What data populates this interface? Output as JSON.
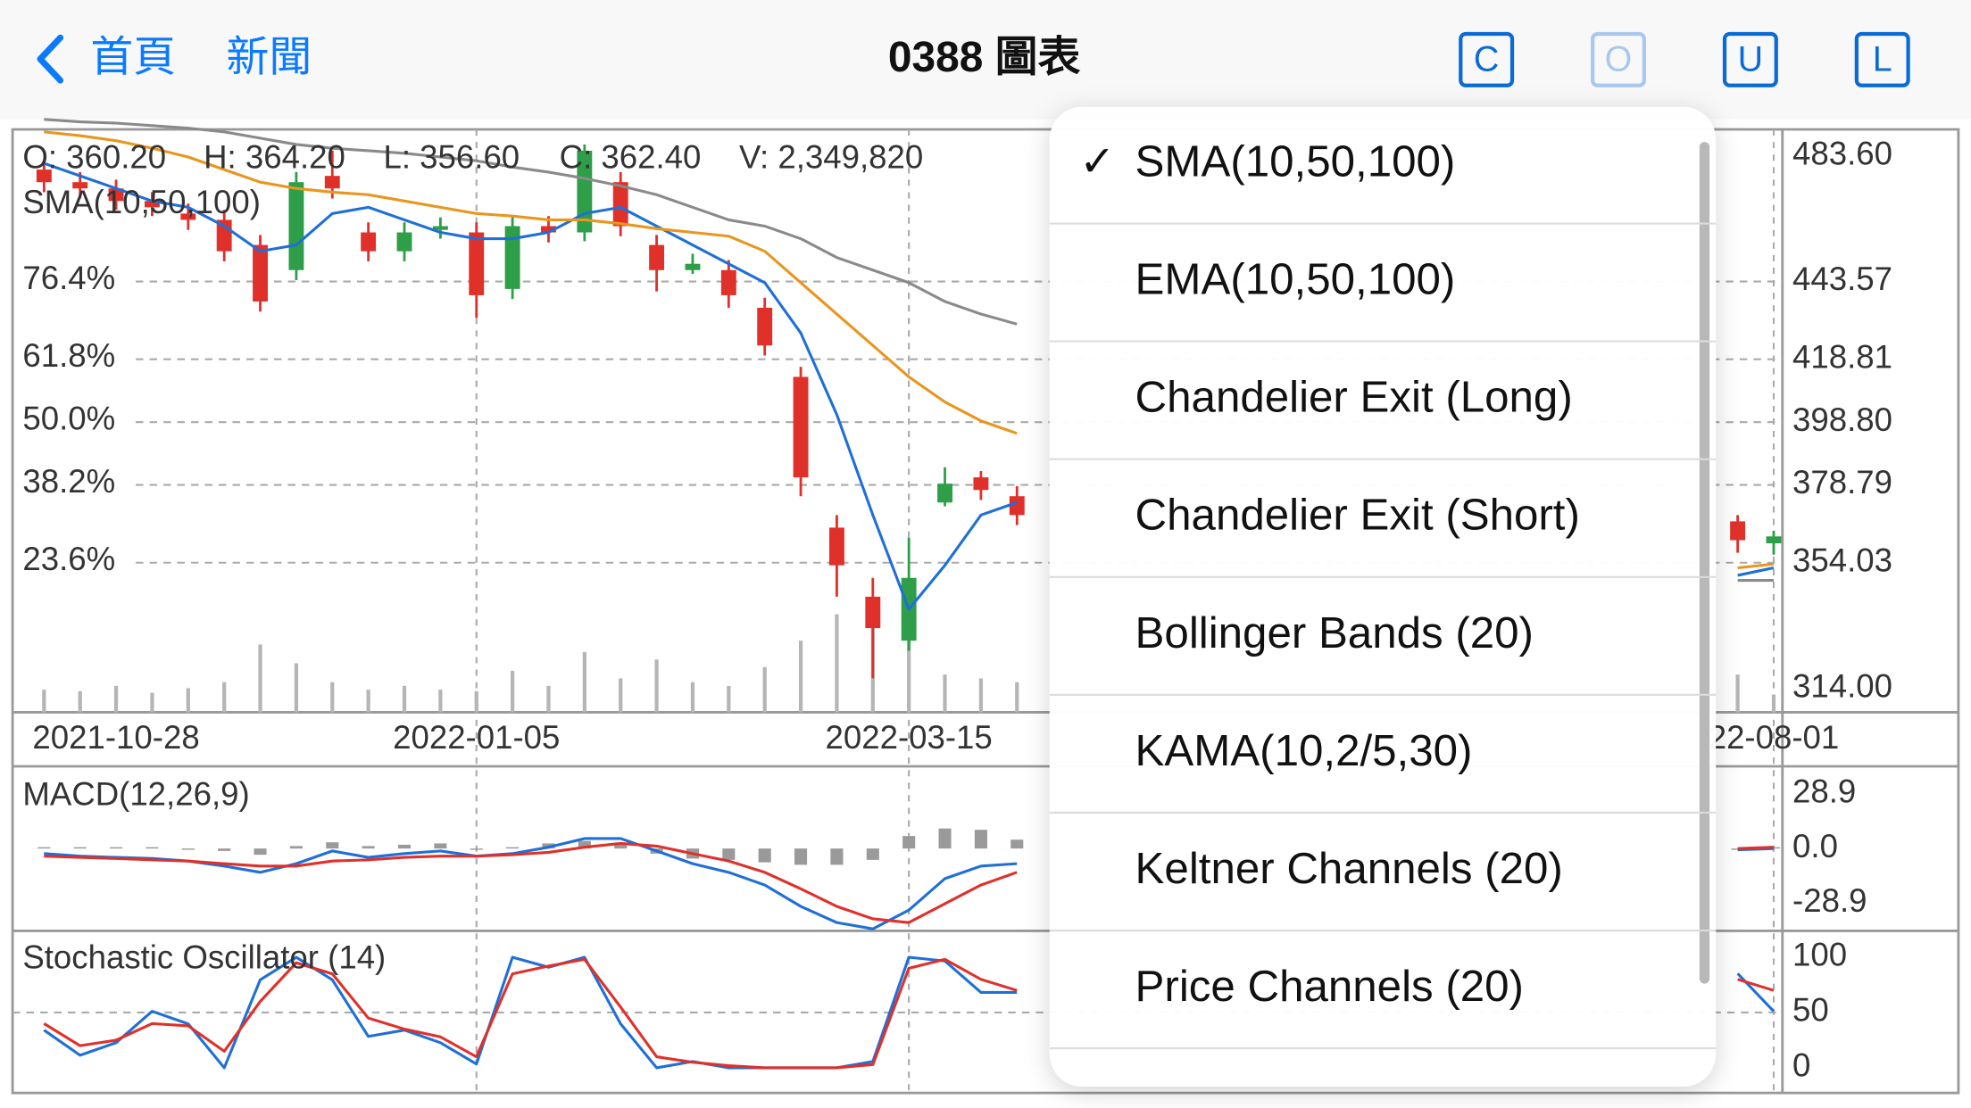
{
  "nav": {
    "back": "首頁",
    "news": "新聞",
    "title": "0388 圖表",
    "buttons": [
      "C",
      "O",
      "U",
      "L"
    ],
    "disabled_button": 1
  },
  "chart_data": [
    {
      "type": "candlestick",
      "info": [
        "O: 360.20",
        "H: 364.20",
        "L: 356.60",
        "C: 362.40",
        "V: 2,349,820"
      ],
      "indicator_label": "SMA(10,50,100)",
      "categories": [
        null,
        null,
        "2021-10-28",
        null,
        null,
        null,
        null,
        null,
        null,
        null,
        null,
        null,
        "2022-01-05",
        null,
        null,
        null,
        null,
        null,
        null,
        null,
        null,
        null,
        null,
        null,
        "2022-03-15",
        null,
        null,
        null,
        null,
        null,
        null,
        null,
        null,
        null,
        null,
        null,
        null,
        null,
        null,
        null,
        null,
        null,
        null,
        null,
        null,
        null,
        null,
        null,
        "22-08-01"
      ],
      "open": [
        479.2,
        475.2,
        473.2,
        469.2,
        465.2,
        463.2,
        455.2,
        447.2,
        477.2,
        459.2,
        453.2,
        460.0,
        459.2,
        441.2,
        461.2,
        459.2,
        475.2,
        455.2,
        447.2,
        447.2,
        435.2,
        413.2,
        365.2,
        343.2,
        329.2,
        373.2,
        381.2,
        375.2,
        null,
        null,
        null,
        null,
        null,
        null,
        null,
        null,
        null,
        null,
        null,
        null,
        null,
        null,
        null,
        null,
        null,
        null,
        null,
        367.2,
        360.2
      ],
      "high": [
        482.4,
        478.4,
        476.0,
        472.0,
        468.4,
        466.4,
        458.4,
        478.4,
        485.2,
        462.4,
        462.4,
        464.0,
        462.4,
        464.4,
        464.4,
        487.2,
        478.4,
        458.4,
        452.4,
        450.4,
        438.4,
        416.4,
        369.2,
        349.2,
        362.0,
        384.4,
        383.2,
        378.4,
        null,
        null,
        null,
        null,
        null,
        null,
        null,
        null,
        null,
        null,
        null,
        null,
        null,
        null,
        null,
        null,
        null,
        null,
        null,
        369.2,
        364.2
      ],
      "low": [
        472.0,
        470.0,
        466.4,
        464.4,
        460.0,
        450.0,
        434.0,
        444.0,
        470.0,
        450.0,
        450.0,
        457.2,
        432.0,
        438.0,
        456.0,
        456.4,
        458.0,
        440.4,
        446.0,
        435.2,
        420.0,
        375.2,
        343.2,
        317.2,
        326.0,
        372.0,
        374.0,
        366.0,
        null,
        null,
        null,
        null,
        null,
        null,
        null,
        null,
        null,
        null,
        null,
        null,
        null,
        null,
        null,
        null,
        null,
        null,
        null,
        357.2,
        356.6
      ],
      "close": [
        475.2,
        473.2,
        469.2,
        467.2,
        463.2,
        453.2,
        437.2,
        475.2,
        473.2,
        453.2,
        459.2,
        461.2,
        439.2,
        461.2,
        459.2,
        485.2,
        461.2,
        447.2,
        449.2,
        439.2,
        423.2,
        381.2,
        353.2,
        333.2,
        349.2,
        379.2,
        377.2,
        369.2,
        null,
        null,
        null,
        null,
        null,
        null,
        null,
        null,
        null,
        null,
        null,
        null,
        null,
        null,
        null,
        null,
        null,
        null,
        null,
        361.2,
        362.4
      ],
      "up_color": "#2e9e48",
      "down_color": "#e0302a",
      "series": [
        {
          "color": "#1f6fd8",
          "values": [
            481.2,
            477.2,
            473.2,
            469.2,
            467.2,
            461.2,
            453.2,
            455.2,
            465.2,
            467.2,
            463.2,
            459.2,
            457.2,
            457.2,
            459.2,
            465.2,
            467.2,
            461.2,
            455.2,
            449.2,
            443.2,
            427.2,
            401.2,
            369.2,
            339.2,
            353.2,
            369.2,
            373.2,
            null,
            null,
            null,
            null,
            null,
            null,
            null,
            null,
            null,
            null,
            null,
            null,
            null,
            null,
            null,
            null,
            null,
            null,
            null,
            350.0,
            352.4
          ]
        },
        {
          "color": "#e8961e",
          "values": [
            491.2,
            490.0,
            488.4,
            486.0,
            483.2,
            479.2,
            475.2,
            473.2,
            472.0,
            471.2,
            469.2,
            467.2,
            465.2,
            464.4,
            463.2,
            463.2,
            462.0,
            460.4,
            459.2,
            458.0,
            453.2,
            443.2,
            433.2,
            423.2,
            413.2,
            405.2,
            399.2,
            395.2,
            null,
            null,
            null,
            null,
            null,
            null,
            null,
            null,
            null,
            null,
            null,
            null,
            null,
            null,
            null,
            null,
            null,
            null,
            null,
            352.4,
            353.6
          ]
        },
        {
          "color": "#8a8a8a",
          "values": [
            495.2,
            494.4,
            494.0,
            493.2,
            492.4,
            491.2,
            489.2,
            487.2,
            486.0,
            485.2,
            484.4,
            483.2,
            482.0,
            480.0,
            478.4,
            476.4,
            474.0,
            471.2,
            467.2,
            463.2,
            461.2,
            457.2,
            451.2,
            447.2,
            443.2,
            437.2,
            433.2,
            430.0,
            null,
            null,
            null,
            null,
            null,
            null,
            null,
            null,
            null,
            null,
            null,
            null,
            null,
            null,
            null,
            null,
            null,
            null,
            null,
            348.4,
            348.4
          ]
        }
      ],
      "volume": {
        "color": "#b5b5b5",
        "vlim": [
          0,
          20000000
        ],
        "values": [
          3000000,
          2800000,
          3500000,
          2600000,
          3200000,
          4000000,
          9000000,
          6500000,
          4000000,
          3000000,
          3500000,
          3000000,
          2800000,
          5500000,
          3500000,
          8000000,
          4500000,
          7000000,
          4000000,
          3500000,
          6000000,
          9500000,
          13000000,
          14000000,
          11500000,
          5000000,
          4500000,
          4000000,
          null,
          null,
          null,
          null,
          null,
          null,
          null,
          null,
          null,
          null,
          null,
          null,
          null,
          null,
          null,
          null,
          null,
          null,
          null,
          5000000,
          2349820
        ]
      },
      "ylim": [
        306.4,
        492
      ],
      "yticks": [
        {
          "value": 483.6,
          "label": "483.60"
        },
        {
          "value": 443.57,
          "label": "443.57",
          "fib": "76.4%"
        },
        {
          "value": 418.81,
          "label": "418.81",
          "fib": "61.8%"
        },
        {
          "value": 398.8,
          "label": "398.80",
          "fib": "50.0%"
        },
        {
          "value": 378.79,
          "label": "378.79",
          "fib": "38.2%"
        },
        {
          "value": 354.03,
          "label": "354.03",
          "fib": "23.6%"
        },
        {
          "value": 314,
          "label": "314.00"
        }
      ]
    },
    {
      "type": "macd",
      "title": "MACD(12,26,9)",
      "series": [
        {
          "color": "#1f6fd8",
          "values": [
            -2.7,
            -4.0,
            -4.7,
            -5.3,
            -6.6,
            -9.3,
            -12.6,
            -8.0,
            -1.3,
            -4.7,
            -2.7,
            -1.3,
            -4.0,
            -2.7,
            0.7,
            5.3,
            5.3,
            -1.3,
            -8.0,
            -12.6,
            -19.3,
            -30.6,
            -39.2,
            -42.5,
            -32.6,
            -15.9,
            -9.3,
            -8.0,
            null,
            null,
            null,
            null,
            null,
            null,
            null,
            null,
            null,
            null,
            null,
            null,
            null,
            null,
            null,
            null,
            null,
            null,
            null,
            -0.7,
            0.0
          ]
        },
        {
          "color": "#e0302a",
          "values": [
            -4.0,
            -4.7,
            -5.3,
            -6.0,
            -6.6,
            -8.0,
            -9.3,
            -9.3,
            -6.6,
            -6.0,
            -4.7,
            -4.0,
            -4.0,
            -3.3,
            -2.0,
            0.7,
            2.7,
            1.3,
            -2.7,
            -6.6,
            -12.6,
            -21.3,
            -30.6,
            -37.2,
            -39.2,
            -29.2,
            -19.3,
            -12.6,
            null,
            null,
            null,
            null,
            null,
            null,
            null,
            null,
            null,
            null,
            null,
            null,
            null,
            null,
            null,
            null,
            null,
            null,
            null,
            0.0,
            0.7
          ]
        }
      ],
      "histogram": {
        "color": "#9a9a9a",
        "values": [
          0.7,
          0.7,
          0.7,
          0.7,
          0,
          -1.3,
          -3.3,
          1.3,
          3.3,
          1.3,
          2.0,
          2.7,
          0,
          0.7,
          2.7,
          4.0,
          2.7,
          -2.7,
          -5.3,
          -6.0,
          -7.3,
          -8.6,
          -8.6,
          -6.0,
          6.6,
          10.6,
          9.9,
          4.7,
          null,
          null,
          null,
          null,
          null,
          null,
          null,
          null,
          null,
          null,
          null,
          null,
          null,
          null,
          null,
          null,
          null,
          null,
          null,
          -0.7,
          0.7
        ]
      },
      "ylim": [
        -42.9,
        43.5
      ],
      "yticks": [
        28.9,
        {
          "value": 0,
          "label": "0.0"
        },
        -28.9
      ]
    },
    {
      "type": "line",
      "title": "Stochastic Oscillator (14)",
      "series": [
        {
          "color": "#1f6fd8",
          "values": [
            34.1,
            11.4,
            22.7,
            51.1,
            39.8,
            0,
            79.5,
            100,
            79.5,
            28.4,
            34.1,
            22.7,
            3.4,
            100,
            90.9,
            100,
            39.8,
            0,
            5.7,
            0,
            0,
            0,
            0,
            5.7,
            100,
            96.6,
            68.2,
            68.2,
            null,
            null,
            null,
            null,
            null,
            null,
            null,
            null,
            null,
            null,
            null,
            null,
            null,
            null,
            null,
            null,
            null,
            null,
            null,
            85.2,
            51.1
          ]
        },
        {
          "color": "#e0302a",
          "values": [
            40,
            20,
            25,
            40,
            38,
            15,
            60,
            95,
            85,
            45,
            35,
            28,
            10,
            85,
            92,
            98,
            55,
            10,
            5,
            2,
            0,
            0,
            0,
            3,
            90,
            98,
            80,
            70,
            null,
            null,
            null,
            null,
            null,
            null,
            null,
            null,
            null,
            null,
            null,
            null,
            null,
            null,
            null,
            null,
            null,
            null,
            null,
            80,
            70
          ]
        }
      ],
      "ylim": [
        -22.7,
        122.7
      ],
      "yticks": [
        100,
        50,
        0
      ]
    }
  ],
  "menu": {
    "check": "✓",
    "selected": 0,
    "items": [
      "SMA(10,50,100)",
      "EMA(10,50,100)",
      "Chandelier Exit (Long)",
      "Chandelier Exit (Short)",
      "Bollinger Bands (20)",
      "KAMA(10,2/5,30)",
      "Keltner Channels (20)",
      "Price Channels (20)"
    ]
  }
}
